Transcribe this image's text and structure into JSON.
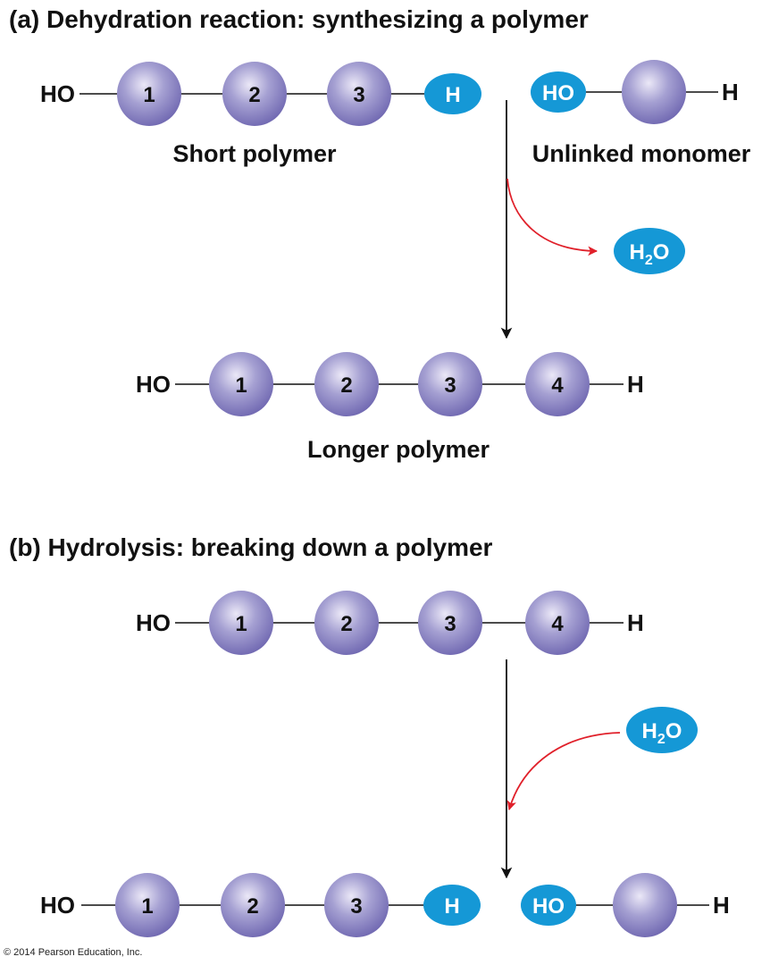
{
  "colors": {
    "monomer_light": "#ebe8f7",
    "monomer_mid": "#a5a0d2",
    "monomer_dark": "#6e66b0",
    "blue_group": "#1598d6",
    "water_arrow": "#e0202a",
    "main_arrow": "#111111"
  },
  "section_a": {
    "heading": "(a) Dehydration reaction: synthesizing a polymer",
    "short_polymer": {
      "left_end": "HO",
      "monomers": [
        "1",
        "2",
        "3"
      ],
      "right_group": "H",
      "caption": "Short polymer"
    },
    "unlinked_monomer": {
      "left_group": "HO",
      "right_end": "H",
      "caption": "Unlinked monomer"
    },
    "water": {
      "main": "H",
      "sub": "2",
      "tail": "O"
    },
    "longer_polymer": {
      "left_end": "HO",
      "monomers": [
        "1",
        "2",
        "3",
        "4"
      ],
      "right_end": "H",
      "caption": "Longer polymer"
    }
  },
  "section_b": {
    "heading": "(b) Hydrolysis: breaking down a polymer",
    "polymer": {
      "left_end": "HO",
      "monomers": [
        "1",
        "2",
        "3",
        "4"
      ],
      "right_end": "H"
    },
    "water": {
      "main": "H",
      "sub": "2",
      "tail": "O"
    },
    "products": {
      "left_end": "HO",
      "monomers": [
        "1",
        "2",
        "3"
      ],
      "right_group": "H",
      "free_left_group": "HO",
      "free_right_end": "H"
    }
  },
  "copyright": "© 2014 Pearson Education, Inc."
}
